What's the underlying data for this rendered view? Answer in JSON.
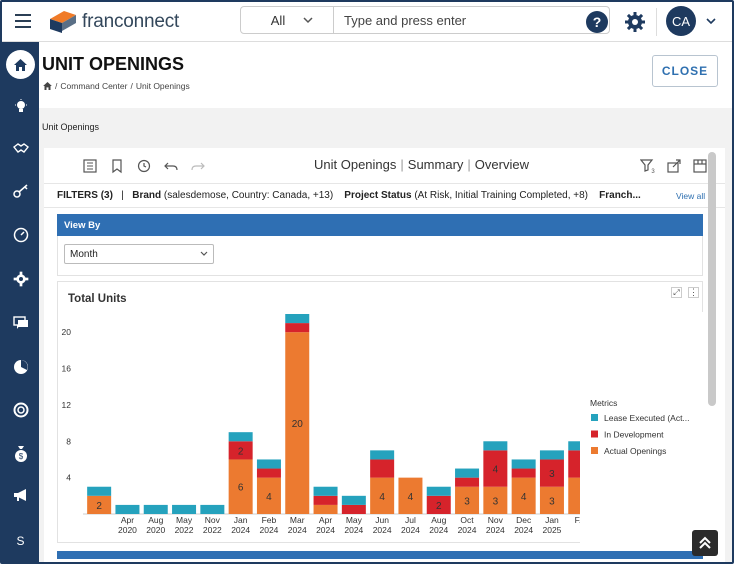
{
  "topbar": {
    "logo_text": "franconnect",
    "search_scope": "All",
    "search_placeholder": "Type and press enter",
    "avatar_initials": "CA"
  },
  "sidebar": {
    "items": [
      {
        "icon": "home-icon"
      },
      {
        "icon": "lightbulb-icon"
      },
      {
        "icon": "handshake-icon"
      },
      {
        "icon": "key-icon"
      },
      {
        "icon": "gauge-icon"
      },
      {
        "icon": "gear-icon"
      },
      {
        "icon": "chat-icon"
      },
      {
        "icon": "pie-icon"
      },
      {
        "icon": "lifebuoy-icon"
      },
      {
        "icon": "money-bag-icon"
      },
      {
        "icon": "megaphone-icon"
      }
    ],
    "bottom_label": "S"
  },
  "page": {
    "title": "UNIT OPENINGS",
    "breadcrumb_1": "Command Center",
    "breadcrumb_2": "Unit Openings",
    "close_label": "CLOSE",
    "sub_label": "Unit Openings"
  },
  "report": {
    "title_1": "Unit Openings",
    "title_2": "Summary",
    "title_3": "Overview",
    "filter_count_badge": "3",
    "filters_label": "FILTERS (3)",
    "brand_label": "Brand",
    "brand_value": "(salesdemose, Country: Canada, +13)",
    "status_label": "Project Status",
    "status_value": "(At Risk, Initial Training Completed, +8)",
    "franchise_label": "Franch...",
    "view_all": "View all",
    "view_by_label": "View By",
    "view_by_value": "Month"
  },
  "colors": {
    "navy": "#1e3a5f",
    "blue": "#2f6fb3",
    "teal": "#25a2bd",
    "red": "#d6232b",
    "orange": "#ec7a30"
  },
  "chart_data": {
    "type": "bar",
    "stacked": true,
    "title": "Total Units",
    "legend_title": "Metrics",
    "legend_position": "right",
    "ylim": [
      0,
      22
    ],
    "yticks": [
      4,
      8,
      12,
      16,
      20
    ],
    "grid": false,
    "categories": [
      "",
      "Apr\n2020",
      "Aug\n2020",
      "May\n2022",
      "Nov\n2022",
      "Jan\n2024",
      "Feb\n2024",
      "Mar\n2024",
      "Apr\n2024",
      "May\n2024",
      "Jun\n2024",
      "Jul\n2024",
      "Aug\n2024",
      "Oct\n2024",
      "Nov\n2024",
      "Dec\n2024",
      "Jan\n2025",
      "F..."
    ],
    "series": [
      {
        "name": "Actual Openings",
        "color": "#ec7a30",
        "values": [
          2,
          0,
          0,
          0,
          0,
          6,
          4,
          20,
          1,
          0,
          4,
          4,
          0,
          3,
          3,
          4,
          3,
          4
        ]
      },
      {
        "name": "In Development",
        "color": "#d6232b",
        "values": [
          0,
          0,
          0,
          0,
          0,
          2,
          1,
          1,
          1,
          1,
          2,
          0,
          2,
          1,
          4,
          1,
          3,
          3
        ]
      },
      {
        "name": "Lease Executed (Act...",
        "color": "#25a2bd",
        "values": [
          1,
          1,
          1,
          1,
          1,
          1,
          1,
          1,
          1,
          1,
          1,
          0,
          1,
          1,
          1,
          1,
          1,
          1
        ]
      }
    ],
    "data_labels": [
      {
        "index": 0,
        "series": 0,
        "text": "2"
      },
      {
        "index": 5,
        "series": 1,
        "text": "2"
      },
      {
        "index": 5,
        "series": 0,
        "text": "6"
      },
      {
        "index": 6,
        "series": 0,
        "text": "4"
      },
      {
        "index": 7,
        "series": 0,
        "text": "20"
      },
      {
        "index": 10,
        "series": 0,
        "text": "4"
      },
      {
        "index": 11,
        "series": 0,
        "text": "4"
      },
      {
        "index": 12,
        "series": 1,
        "text": "2"
      },
      {
        "index": 13,
        "series": 0,
        "text": "3"
      },
      {
        "index": 14,
        "series": 1,
        "text": "4"
      },
      {
        "index": 14,
        "series": 0,
        "text": "3"
      },
      {
        "index": 15,
        "series": 0,
        "text": "4"
      },
      {
        "index": 16,
        "series": 1,
        "text": "3"
      },
      {
        "index": 16,
        "series": 0,
        "text": "3"
      }
    ]
  }
}
